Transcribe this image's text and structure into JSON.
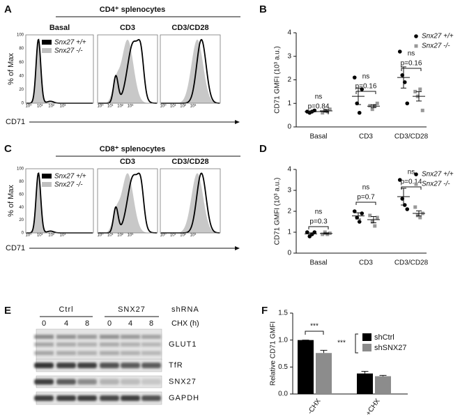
{
  "figure": {
    "flow_panels": [
      {
        "letter": "A",
        "title": "CD4⁺ splenocytes",
        "conditions": [
          "Basal",
          "CD3",
          "CD3/CD28"
        ],
        "y_label": "% of Max",
        "y_ticks": [
          "0",
          "20",
          "40",
          "60",
          "80",
          "100"
        ],
        "x_ticks": [
          "10⁰",
          "10¹",
          "10²",
          "10³"
        ],
        "x_label": "CD71",
        "legend": [
          "Snx27 +/+",
          "Snx27 -/-"
        ]
      },
      {
        "letter": "C",
        "title": "CD8⁺ splenocytes",
        "conditions": [
          null,
          "CD3",
          "CD3/CD28"
        ],
        "y_label": "% of Max",
        "y_ticks": [
          "0",
          "20",
          "40",
          "60",
          "80",
          "100"
        ],
        "x_ticks": [
          "10⁰",
          "10¹",
          "10²",
          "10³"
        ],
        "x_label": "CD71",
        "legend": [
          "Snx27 +/+",
          "Snx27 -/-"
        ]
      }
    ],
    "blot": {
      "letter": "E",
      "groups": [
        "Ctrl",
        "SNX27"
      ],
      "group_label": "shRNA",
      "times": [
        "0",
        "4",
        "8"
      ],
      "time_label": "CHX (h)",
      "proteins": [
        "GLUT1",
        "TfR",
        "SNX27",
        "GAPDH"
      ]
    }
  },
  "chart_data": [
    {
      "type": "strip",
      "panel_label": "B",
      "y_label": "CD71 GMFI (10³ a.u.)",
      "categories": [
        "Basal",
        "CD3",
        "CD3/CD28"
      ],
      "ylim": [
        0,
        4
      ],
      "yticks": [
        0,
        1,
        2,
        3,
        4
      ],
      "series": [
        {
          "name": "Snx27 +/+",
          "color": "#000000",
          "marker": "circle",
          "values": [
            [
              0.65,
              0.6,
              0.65,
              0.7
            ],
            [
              2.1,
              1.0,
              0.6,
              1.6
            ],
            [
              3.2,
              2.2,
              1.9,
              1.0
            ]
          ],
          "mean": [
            0.65,
            1.3,
            2.1
          ],
          "error": [
            0.03,
            0.35,
            0.45
          ]
        },
        {
          "name": "Snx27 -/-",
          "color": "#999999",
          "marker": "square",
          "values": [
            [
              0.6,
              0.7,
              0.65,
              0.75
            ],
            [
              0.9,
              0.75,
              0.9,
              1.0
            ],
            [
              1.5,
              1.3,
              1.6,
              0.7
            ]
          ],
          "mean": [
            0.68,
            0.88,
            1.3
          ],
          "error": [
            0.05,
            0.06,
            0.2
          ]
        }
      ],
      "comparisons": [
        {
          "label": "ns",
          "p": "p=0.84"
        },
        {
          "label": "ns",
          "p": "p=0.16"
        },
        {
          "label": "ns",
          "p": "p=0.16"
        }
      ]
    },
    {
      "type": "strip",
      "panel_label": "D",
      "y_label": "CD71 GMFI (10³ a.u.)",
      "categories": [
        "Basal",
        "CD3",
        "CD3/CD28"
      ],
      "ylim": [
        0,
        4
      ],
      "yticks": [
        0,
        1,
        2,
        3,
        4
      ],
      "series": [
        {
          "name": "Snx27 +/+",
          "color": "#000000",
          "marker": "circle",
          "values": [
            [
              1.0,
              0.8,
              0.9,
              1.0
            ],
            [
              2.0,
              1.7,
              1.5,
              1.9
            ],
            [
              3.5,
              2.6,
              2.3,
              2.1
            ]
          ],
          "mean": [
            0.92,
            1.78,
            2.7
          ],
          "error": [
            0.05,
            0.15,
            0.4
          ]
        },
        {
          "name": "Snx27 -/-",
          "color": "#999999",
          "marker": "square",
          "values": [
            [
              0.9,
              1.0,
              0.9,
              0.95
            ],
            [
              1.8,
              1.5,
              1.3,
              1.7
            ],
            [
              2.2,
              1.8,
              1.7,
              1.9
            ]
          ],
          "mean": [
            0.94,
            1.6,
            1.9
          ],
          "error": [
            0.03,
            0.15,
            0.12
          ]
        }
      ],
      "comparisons": [
        {
          "label": "ns",
          "p": "p=0.3"
        },
        {
          "label": "ns",
          "p": "p=0.7"
        },
        {
          "label": "ns",
          "p": "p=0.14"
        }
      ]
    },
    {
      "type": "bar",
      "panel_label": "F",
      "y_label": "Relative CD71 GMFI",
      "categories": [
        "-CHX",
        "+CHX"
      ],
      "ylim": [
        0,
        1.5
      ],
      "yticks": [
        {
          "value": 0,
          "label": "0.0"
        },
        {
          "value": 0.5,
          "label": "0.5"
        },
        {
          "value": 1,
          "label": "1.0"
        },
        {
          "value": 1.5,
          "label": "1.5"
        }
      ],
      "series": [
        {
          "name": "shCtrl",
          "color": "#000000",
          "values": [
            1.0,
            0.38
          ],
          "errors": [
            0,
            0.04
          ]
        },
        {
          "name": "shSNX27",
          "color": "#8c8c8c",
          "values": [
            0.76,
            0.33
          ],
          "errors": [
            0.05,
            0.015
          ]
        }
      ],
      "annotations": [
        "***",
        "***"
      ]
    }
  ]
}
